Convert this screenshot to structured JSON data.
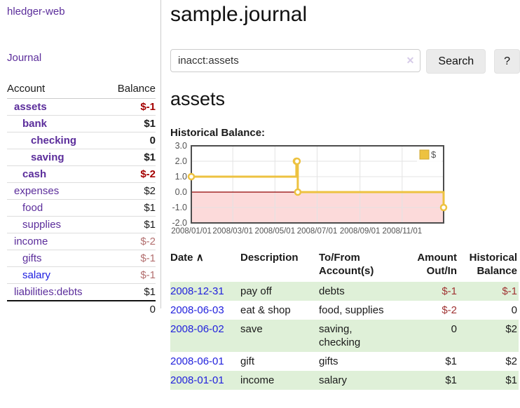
{
  "sidebar": {
    "brand": "hledger-web",
    "nav_journal": "Journal",
    "accounts_table": {
      "headers": {
        "account": "Account",
        "balance": "Balance"
      },
      "rows": [
        {
          "name": "assets",
          "indent": 1,
          "bold": true,
          "balance": "$-1",
          "neg": true
        },
        {
          "name": "bank",
          "indent": 2,
          "bold": true,
          "balance": "$1",
          "neg": false
        },
        {
          "name": "checking",
          "indent": 3,
          "bold": true,
          "balance": "0",
          "neg": false
        },
        {
          "name": "saving",
          "indent": 3,
          "bold": true,
          "balance": "$1",
          "neg": false
        },
        {
          "name": "cash",
          "indent": 2,
          "bold": true,
          "balance": "$-2",
          "neg": true
        },
        {
          "name": "expenses",
          "indent": 1,
          "bold": false,
          "balance": "$2",
          "neg": false
        },
        {
          "name": "food",
          "indent": 2,
          "bold": false,
          "balance": "$1",
          "neg": false
        },
        {
          "name": "supplies",
          "indent": 2,
          "bold": false,
          "balance": "$1",
          "neg": false
        },
        {
          "name": "income",
          "indent": 1,
          "bold": false,
          "balance": "$-2",
          "neg": true
        },
        {
          "name": "gifts",
          "indent": 2,
          "bold": false,
          "balance": "$-1",
          "neg": true
        },
        {
          "name": "salary",
          "indent": 2,
          "bold": false,
          "balance": "$-1",
          "neg": true,
          "link": "blue"
        },
        {
          "name": "liabilities:debts",
          "indent": 1,
          "bold": false,
          "balance": "$1",
          "neg": false
        }
      ],
      "total": "0"
    }
  },
  "header": {
    "title": "sample.journal"
  },
  "search": {
    "query": "inacct:assets",
    "clear_icon": "✕",
    "button_label": "Search",
    "help_label": "?"
  },
  "account_page": {
    "heading": "assets",
    "chart_label": "Historical Balance:"
  },
  "chart_data": {
    "type": "line",
    "steps": true,
    "title": "Historical Balance",
    "series": [
      {
        "name": "$",
        "color": "#edc240",
        "points": [
          [
            "2008-01-01",
            1
          ],
          [
            "2008-06-01",
            2
          ],
          [
            "2008-06-02",
            2
          ],
          [
            "2008-06-03",
            0
          ],
          [
            "2008-12-31",
            -1
          ]
        ]
      }
    ],
    "xrange": [
      "2008-01-01",
      "2008-12-31"
    ],
    "xticks": [
      {
        "date": "2008-01-01",
        "label": "2008/01/01"
      },
      {
        "date": "2008-03-01",
        "label": "2008/03/01"
      },
      {
        "date": "2008-05-01",
        "label": "2008/05/01"
      },
      {
        "date": "2008-07-01",
        "label": "2008/07/01"
      },
      {
        "date": "2008-09-01",
        "label": "2008/09/01"
      },
      {
        "date": "2008-11-01",
        "label": "2008/11/01"
      }
    ],
    "yticks": [
      "3.0",
      "2.0",
      "1.0",
      "0.0",
      "-1.0",
      "-2.0"
    ],
    "ylim": [
      -2,
      3
    ],
    "grid": true,
    "legend_position": "top-right",
    "legend": [
      {
        "label": "$",
        "color": "#edc240"
      }
    ],
    "colors": {
      "line": "#edc240",
      "marker_fill": "#ffffff",
      "negative_region": "#fcdada",
      "zero_line": "#900000",
      "gridline": "#e3e3e3",
      "border": "#4d4d4d",
      "tick_text": "#545454"
    }
  },
  "register_table": {
    "columns": [
      "Date",
      "Description",
      "To/From Account(s)",
      "Amount Out/In",
      "Historical Balance"
    ],
    "sort_icon": "∧",
    "rows": [
      {
        "date": "2008-12-31",
        "description": "pay off",
        "accounts": "debts",
        "amount": "$-1",
        "amount_neg": true,
        "balance": "$-1",
        "balance_neg": true
      },
      {
        "date": "2008-06-03",
        "description": "eat & shop",
        "accounts": "food, supplies",
        "amount": "$-2",
        "amount_neg": true,
        "balance": "0",
        "balance_neg": false
      },
      {
        "date": "2008-06-02",
        "description": "save",
        "accounts": "saving, checking",
        "amount": "0",
        "amount_neg": false,
        "balance": "$2",
        "balance_neg": false
      },
      {
        "date": "2008-06-01",
        "description": "gift",
        "accounts": "gifts",
        "amount": "$1",
        "amount_neg": false,
        "balance": "$2",
        "balance_neg": false
      },
      {
        "date": "2008-01-01",
        "description": "income",
        "accounts": "salary",
        "amount": "$1",
        "amount_neg": false,
        "balance": "$1",
        "balance_neg": false
      }
    ]
  },
  "colors": {
    "accent_purple": "#5b2d9b",
    "link_blue": "#1c1ce0",
    "date_link_blue": "#2222dd",
    "negative_strong": "#a40000",
    "negative_soft": "#b36f6f",
    "table_negative": "#a03434",
    "stripe_green": "#dff0d8"
  }
}
